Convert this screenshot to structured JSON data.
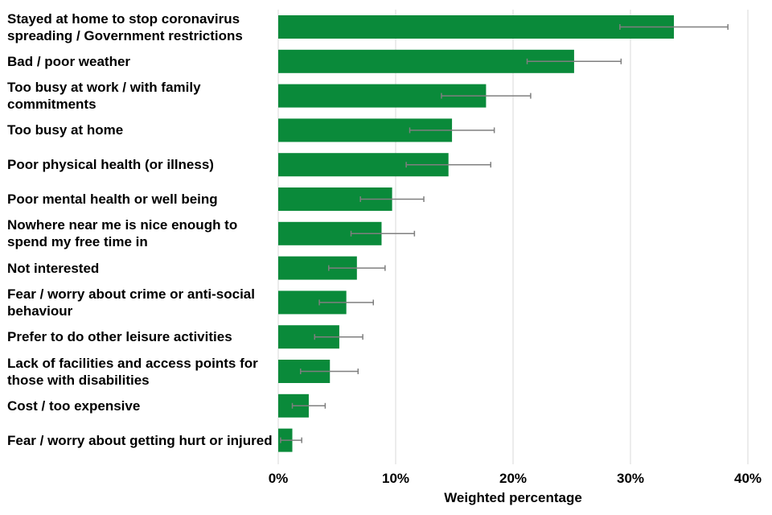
{
  "chart_data": {
    "type": "bar",
    "orientation": "horizontal",
    "title": "",
    "xlabel": "Weighted percentage",
    "ylabel": "",
    "xlim": [
      0,
      40
    ],
    "x_ticks": [
      0,
      10,
      20,
      30,
      40
    ],
    "x_tick_labels": [
      "0%",
      "10%",
      "20%",
      "30%",
      "40%"
    ],
    "grid": "vertical",
    "bar_color": "#0a8a3a",
    "error_bar_color": "#7f7f7f",
    "categories": [
      "Stayed at home to stop coronavirus spreading / Government restrictions",
      "Bad / poor weather",
      "Too busy at work / with family commitments",
      "Too busy at home",
      "Poor physical health (or illness)",
      "Poor mental health or well being",
      "Nowhere near me is nice enough to spend my free time in",
      "Not interested",
      "Fear / worry about crime or anti-social behaviour",
      "Prefer to do other leisure activities",
      "Lack of facilities and access points for those with disabilities",
      "Cost / too expensive",
      "Fear / worry about getting hurt or injured"
    ],
    "values": [
      33.7,
      25.2,
      17.7,
      14.8,
      14.5,
      9.7,
      8.8,
      6.7,
      5.8,
      5.2,
      4.4,
      2.6,
      1.2
    ],
    "error_low": [
      29.1,
      21.2,
      13.9,
      11.2,
      10.9,
      7.0,
      6.2,
      4.3,
      3.5,
      3.1,
      1.9,
      1.2,
      0.2
    ],
    "error_high": [
      38.3,
      29.2,
      21.5,
      18.4,
      18.1,
      12.4,
      11.6,
      9.1,
      8.1,
      7.2,
      6.8,
      4.0,
      2.0
    ]
  }
}
